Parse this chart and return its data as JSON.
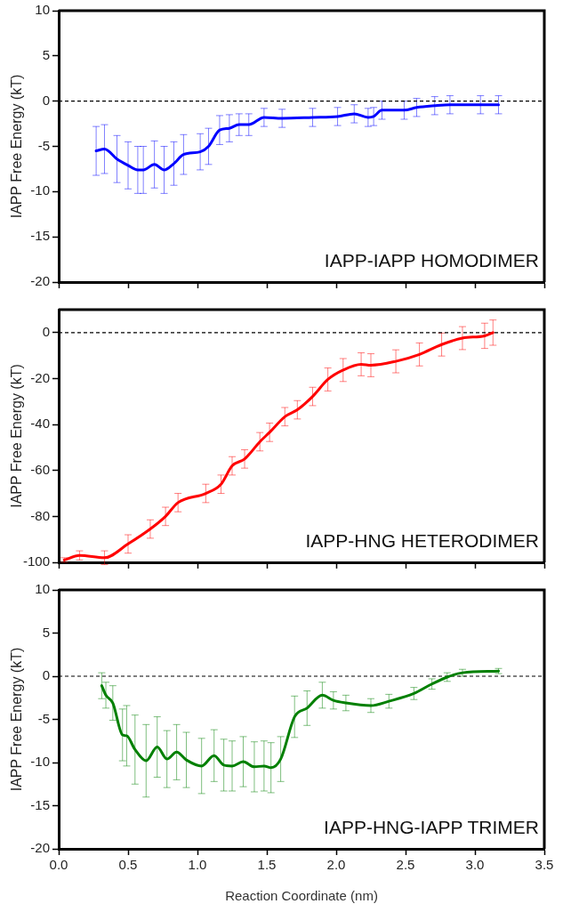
{
  "chart_data": [
    {
      "type": "line",
      "ylabel": "IAPP Free Energy (kT)",
      "xlim": [
        0,
        3.5
      ],
      "xticks": [
        0,
        0.5,
        1,
        1.5,
        2,
        2.5,
        3,
        3.5
      ],
      "ylim": [
        -20,
        10
      ],
      "yticks": [
        -20,
        -15,
        -10,
        -5,
        0,
        5,
        10
      ],
      "tick_labels": "y",
      "grid": false,
      "legend": false,
      "marker": "none",
      "line_style": "solid",
      "ref_lines": [
        {
          "axis": "y",
          "value": 0,
          "color": "#000000",
          "line_style": "dashed"
        }
      ],
      "annotations": [
        "IAPP-IAPP HOMODIMER"
      ],
      "series": [
        {
          "color": "#0000ff",
          "x": [
            0.27,
            0.33,
            0.42,
            0.5,
            0.57,
            0.61,
            0.69,
            0.76,
            0.83,
            0.9,
            1.02,
            1.08,
            1.16,
            1.23,
            1.3,
            1.37,
            1.48,
            1.61,
            1.83,
            2.01,
            2.13,
            2.23,
            2.27,
            2.33,
            2.49,
            2.58,
            2.71,
            2.82,
            3.04,
            3.17
          ],
          "values": [
            -5.5,
            -5.3,
            -6.4,
            -7.1,
            -7.6,
            -7.6,
            -7.0,
            -7.6,
            -6.9,
            -5.9,
            -5.6,
            -5.0,
            -3.2,
            -3.0,
            -2.6,
            -2.6,
            -1.8,
            -1.9,
            -1.8,
            -1.7,
            -1.4,
            -1.8,
            -1.7,
            -1.0,
            -1.0,
            -0.7,
            -0.5,
            -0.4,
            -0.4,
            -0.4
          ],
          "errors": [
            2.7,
            2.7,
            2.6,
            2.6,
            2.6,
            2.6,
            2.6,
            2.6,
            2.4,
            2.2,
            2.0,
            2.0,
            1.6,
            1.5,
            1.2,
            1.2,
            1.0,
            1.0,
            1.0,
            1.0,
            1.0,
            1.0,
            1.0,
            1.0,
            1.0,
            1.0,
            1.0,
            1.0,
            1.0,
            1.0
          ]
        }
      ]
    },
    {
      "type": "line",
      "ylabel": "IAPP Free Energy (kT)",
      "xlim": [
        0,
        3.5
      ],
      "xticks": [
        0,
        0.5,
        1,
        1.5,
        2,
        2.5,
        3,
        3.5
      ],
      "ylim": [
        -100,
        10
      ],
      "yticks": [
        -100,
        -80,
        -60,
        -40,
        -20,
        0
      ],
      "tick_labels": "y",
      "grid": false,
      "legend": false,
      "marker": "none",
      "line_style": "solid",
      "ref_lines": [
        {
          "axis": "y",
          "value": 0,
          "color": "#000000",
          "line_style": "dashed"
        }
      ],
      "annotations": [
        "IAPP-HNG HETERODIMER"
      ],
      "series": [
        {
          "color": "#ff0000",
          "x": [
            0.04,
            0.15,
            0.33,
            0.5,
            0.66,
            0.77,
            0.86,
            1.06,
            1.17,
            1.25,
            1.34,
            1.45,
            1.52,
            1.63,
            1.72,
            1.83,
            1.94,
            2.05,
            2.18,
            2.25,
            2.43,
            2.6,
            2.76,
            2.91,
            3.07,
            3.13
          ],
          "values": [
            -99,
            -97,
            -98,
            -92,
            -85.5,
            -80,
            -74,
            -70,
            -66,
            -58,
            -55,
            -47.5,
            -43.4,
            -36.6,
            -33.6,
            -27.8,
            -20.4,
            -16.3,
            -13.8,
            -14.2,
            -12.5,
            -9.5,
            -5.2,
            -2.4,
            -1.4,
            0
          ],
          "errors": [
            1,
            2,
            3,
            4,
            4,
            4,
            4,
            4,
            4,
            4,
            4,
            4,
            4,
            4,
            4,
            4,
            5,
            5,
            5,
            5,
            5,
            5,
            5,
            5,
            5.5,
            5.5
          ]
        }
      ]
    },
    {
      "type": "line",
      "xlabel": "Reaction Coordinate (nm)",
      "ylabel": "IAPP Free Energy (kT)",
      "xlim": [
        0,
        3.5
      ],
      "xticks": [
        {
          "value": 0,
          "label": "0.0"
        },
        {
          "value": 0.5,
          "label": "0.5"
        },
        {
          "value": 1,
          "label": "1.0"
        },
        {
          "value": 1.5,
          "label": "1.5"
        },
        {
          "value": 2,
          "label": "2.0"
        },
        {
          "value": 2.5,
          "label": "2.5"
        },
        {
          "value": 3,
          "label": "3.0"
        },
        {
          "value": 3.5,
          "label": "3.5"
        }
      ],
      "ylim": [
        -20,
        10
      ],
      "yticks": [
        -20,
        -15,
        -10,
        -5,
        0,
        5,
        10
      ],
      "grid": false,
      "legend": false,
      "marker": "none",
      "line_style": "solid",
      "ref_lines": [
        {
          "axis": "y",
          "value": 0,
          "color": "#000000",
          "line_style": "dashed"
        }
      ],
      "annotations": [
        "IAPP-HNG-IAPP TRIMER"
      ],
      "series": [
        {
          "color": "#008000",
          "x": [
            0.31,
            0.34,
            0.39,
            0.46,
            0.49,
            0.55,
            0.63,
            0.71,
            0.78,
            0.85,
            0.92,
            1.03,
            1.12,
            1.19,
            1.25,
            1.33,
            1.41,
            1.48,
            1.53,
            1.6,
            1.7,
            1.79,
            1.9,
            1.98,
            2.07,
            2.25,
            2.38,
            2.56,
            2.69,
            2.8,
            2.91,
            3.17
          ],
          "values": [
            -1.1,
            -2.2,
            -3.1,
            -6.8,
            -6.9,
            -8.5,
            -9.8,
            -8.2,
            -9.6,
            -8.8,
            -9.7,
            -10.4,
            -9.2,
            -10.3,
            -10.4,
            -9.9,
            -10.5,
            -10.4,
            -10.6,
            -9.6,
            -4.7,
            -3.7,
            -2.2,
            -2.8,
            -3.1,
            -3.4,
            -2.9,
            -2.0,
            -0.9,
            -0.1,
            0.4,
            0.6
          ],
          "errors": [
            1.5,
            1.5,
            2.0,
            3.0,
            3.5,
            4.0,
            4.2,
            3.5,
            3.3,
            3.2,
            3.2,
            3.2,
            3.0,
            3.0,
            2.9,
            2.9,
            2.9,
            2.9,
            2.9,
            2.6,
            2.4,
            2.0,
            1.5,
            1.0,
            0.9,
            0.8,
            0.8,
            0.7,
            0.6,
            0.5,
            0.4,
            0.3
          ]
        }
      ]
    }
  ]
}
